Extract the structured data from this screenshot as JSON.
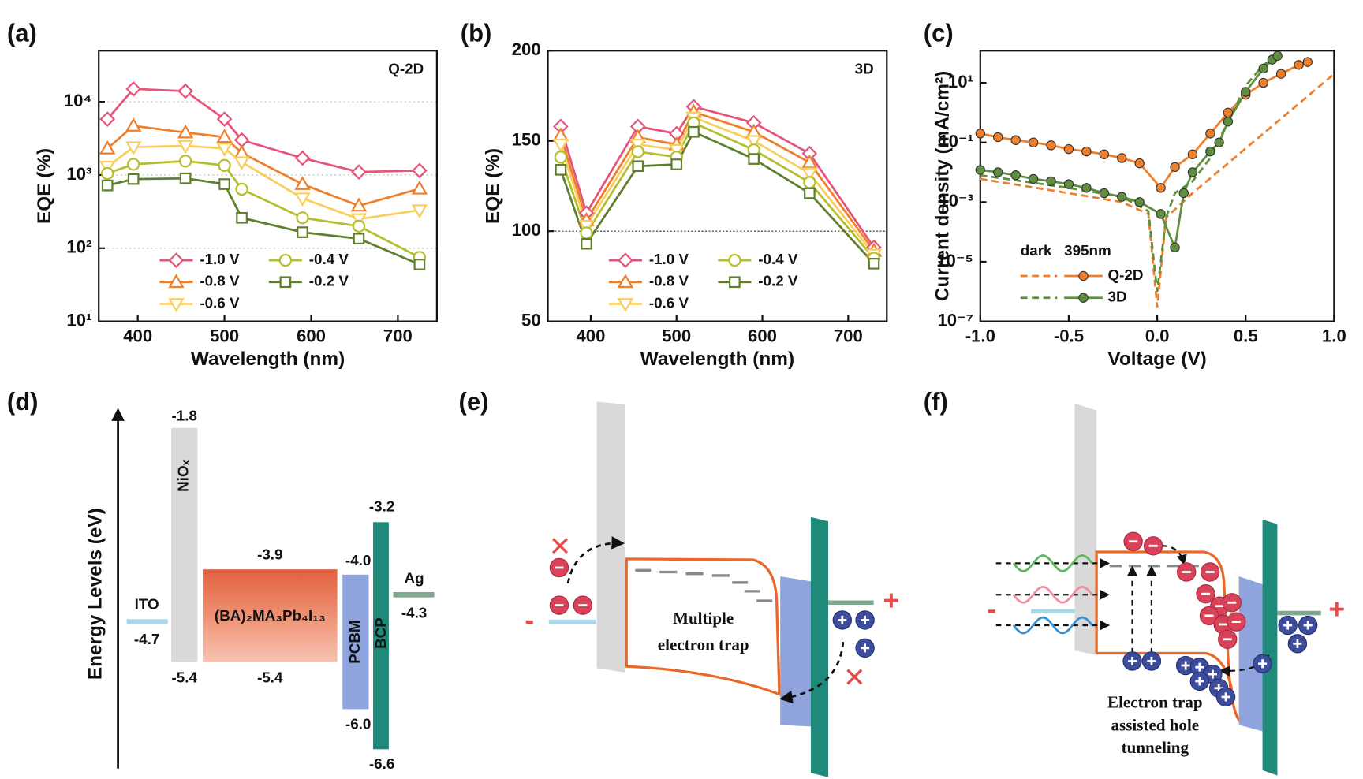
{
  "chart_data": [
    {
      "type": "line",
      "panel": "(a)",
      "annotation": "Q-2D",
      "x_label": "Wavelength (nm)",
      "y_label": "EQE (%)",
      "yscale": "log",
      "grid": true,
      "legend_loc": "lower center",
      "x": [
        365,
        395,
        455,
        500,
        520,
        590,
        655,
        725
      ],
      "xlim": [
        355,
        745
      ],
      "xticks": [
        400,
        500,
        600,
        700
      ],
      "ylim": [
        10,
        50000
      ],
      "yticks": [
        {
          "value": 10,
          "label": "10¹"
        },
        {
          "value": 100,
          "label": "10²"
        },
        {
          "value": 1000,
          "label": "10³"
        },
        {
          "value": 10000,
          "label": "10⁴"
        }
      ],
      "series": [
        {
          "name": "-1.0 V",
          "color": "#e5557a",
          "marker": "diamond",
          "values": [
            5800,
            15000,
            14000,
            5800,
            3000,
            1700,
            1100,
            1150
          ]
        },
        {
          "name": "-0.8 V",
          "color": "#f07f2b",
          "marker": "triangle-up",
          "values": [
            2300,
            4700,
            3800,
            3300,
            2000,
            750,
            380,
            650
          ]
        },
        {
          "name": "-0.6 V",
          "color": "#f8cf5f",
          "marker": "triangle-down",
          "values": [
            1300,
            2400,
            2500,
            2300,
            1500,
            480,
            250,
            330
          ]
        },
        {
          "name": "-0.4 V",
          "color": "#b5bf2e",
          "marker": "circle",
          "values": [
            1050,
            1400,
            1550,
            1350,
            640,
            260,
            200,
            75
          ]
        },
        {
          "name": "-0.2 V",
          "color": "#5f7f2e",
          "marker": "square",
          "values": [
            720,
            880,
            900,
            750,
            260,
            165,
            135,
            60
          ]
        }
      ]
    },
    {
      "type": "line",
      "panel": "(b)",
      "annotation": "3D",
      "x_label": "Wavelength (nm)",
      "y_label": "EQE (%)",
      "yscale": "linear",
      "ref_line": 100,
      "legend_loc": "lower center",
      "x": [
        365,
        395,
        455,
        500,
        520,
        590,
        655,
        730
      ],
      "xlim": [
        350,
        745
      ],
      "xticks": [
        400,
        500,
        600,
        700
      ],
      "ylim": [
        50,
        200
      ],
      "yticks": [
        50,
        100,
        150,
        200
      ],
      "series": [
        {
          "name": "-1.0 V",
          "color": "#e5557a",
          "marker": "diamond",
          "values": [
            158,
            110,
            158,
            154,
            169,
            160,
            143,
            91
          ]
        },
        {
          "name": "-0.8 V",
          "color": "#f07f2b",
          "marker": "triangle-up",
          "values": [
            153,
            106,
            152,
            148,
            166,
            155,
            138,
            89
          ]
        },
        {
          "name": "-0.6 V",
          "color": "#f8cf5f",
          "marker": "triangle-down",
          "values": [
            148,
            103,
            148,
            145,
            163,
            150,
            132,
            87
          ]
        },
        {
          "name": "-0.4 V",
          "color": "#b5bf2e",
          "marker": "circle",
          "values": [
            141,
            99,
            144,
            141,
            160,
            145,
            127,
            85
          ]
        },
        {
          "name": "-0.2 V",
          "color": "#5f7f2e",
          "marker": "square",
          "values": [
            134,
            93,
            136,
            137,
            155,
            140,
            121,
            82
          ]
        }
      ]
    },
    {
      "type": "line",
      "panel": "(c)",
      "x_label": "Voltage (V)",
      "y_label": "Current density (mA/cm²)",
      "yscale": "log",
      "legend_loc": "lower left",
      "legend_columns": [
        "dark",
        "395nm"
      ],
      "xlim": [
        -1,
        1
      ],
      "xticks": [
        {
          "value": -1,
          "label": "-1.0"
        },
        {
          "value": -0.5,
          "label": "-0.5"
        },
        {
          "value": 0,
          "label": "0.0"
        },
        {
          "value": 0.5,
          "label": "0.5"
        },
        {
          "value": 1,
          "label": "1.0"
        }
      ],
      "ylim": [
        1e-07,
        120
      ],
      "yticks": [
        {
          "value": 1e-07,
          "label": "10⁻⁷"
        },
        {
          "value": 1e-05,
          "label": "10⁻⁵"
        },
        {
          "value": 0.001,
          "label": "10⁻³"
        },
        {
          "value": 0.1,
          "label": "10⁻¹"
        },
        {
          "value": 10,
          "label": "10¹"
        }
      ],
      "series": [
        {
          "name": "Q-2D",
          "color": "#f07f2b",
          "marker": "circle",
          "dark": {
            "x": [
              -1,
              -0.5,
              -0.2,
              -0.05,
              0,
              0.05,
              0.2,
              0.4,
              0.6,
              0.8,
              1.0
            ],
            "values": [
              0.006,
              0.002,
              0.001,
              0.0004,
              3e-07,
              0.0003,
              0.002,
              0.02,
              0.2,
              2,
              20
            ]
          },
          "light": {
            "x": [
              -1,
              -0.9,
              -0.8,
              -0.7,
              -0.6,
              -0.5,
              -0.4,
              -0.3,
              -0.2,
              -0.1,
              0.02,
              0.1,
              0.2,
              0.3,
              0.4,
              0.5,
              0.6,
              0.7,
              0.8,
              0.85
            ],
            "values": [
              0.2,
              0.15,
              0.12,
              0.1,
              0.08,
              0.06,
              0.05,
              0.04,
              0.03,
              0.02,
              0.003,
              0.015,
              0.04,
              0.2,
              1,
              4,
              10,
              20,
              40,
              50
            ]
          }
        },
        {
          "name": "3D",
          "color": "#5f8f3e",
          "marker": "circle",
          "dark": {
            "x": [
              -1,
              -0.5,
              -0.2,
              -0.05,
              0,
              0.05,
              0.1,
              0.2,
              0.3,
              0.4,
              0.5,
              0.6,
              0.68
            ],
            "values": [
              0.008,
              0.003,
              0.0015,
              0.0005,
              1e-06,
              0.0003,
              0.002,
              0.005,
              0.03,
              0.5,
              8,
              40,
              80
            ]
          },
          "light": {
            "x": [
              -1,
              -0.9,
              -0.8,
              -0.7,
              -0.6,
              -0.5,
              -0.4,
              -0.3,
              -0.2,
              -0.1,
              0.02,
              0.1,
              0.15,
              0.2,
              0.3,
              0.35,
              0.4,
              0.5,
              0.6,
              0.65,
              0.68
            ],
            "values": [
              0.012,
              0.01,
              0.008,
              0.006,
              0.005,
              0.004,
              0.003,
              0.002,
              0.0015,
              0.001,
              0.0004,
              3e-05,
              0.002,
              0.01,
              0.05,
              0.1,
              0.5,
              5,
              30,
              60,
              80
            ]
          }
        }
      ]
    }
  ],
  "diagrams": {
    "d": {
      "panel": "(d)",
      "axis_label": "Energy Levels (eV)",
      "ito": {
        "name": "ITO",
        "level": "-4.7"
      },
      "nio": {
        "name": "NiOₓ",
        "top": "-1.8",
        "bottom": "-5.4"
      },
      "perovskite": {
        "name": "(BA)₂MA₃Pb₄I₁₃",
        "top": "-3.9",
        "bottom": "-5.4"
      },
      "pcbm": {
        "name": "PCBM",
        "top": "-4.0",
        "bottom": "-6.0"
      },
      "bcp": {
        "name": "BCP",
        "top": "-3.2",
        "bottom": "-6.6"
      },
      "ag": {
        "name": "Ag",
        "level": "-4.3"
      }
    },
    "e": {
      "panel": "(e)",
      "minus": "-",
      "plus": "+",
      "note": [
        "Multiple",
        "electron trap"
      ]
    },
    "f": {
      "panel": "(f)",
      "minus": "-",
      "plus": "+",
      "note": [
        "Electron trap",
        "assisted hole",
        "tunneling"
      ]
    }
  }
}
